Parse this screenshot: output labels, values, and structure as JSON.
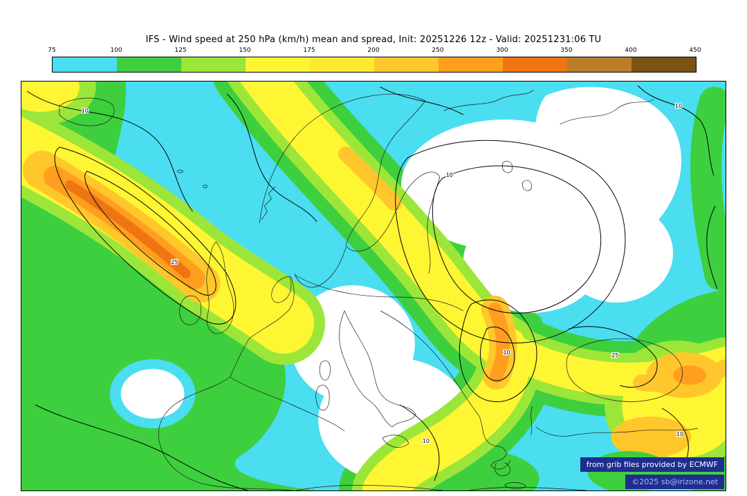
{
  "header": {
    "title": "IFS - Wind speed at 250 hPa (km/h) mean and spread, Init: 20251226 12z - Valid: 20251231:06 TU"
  },
  "colorbar": {
    "unit": "km/h",
    "ticks": [
      "75",
      "100",
      "125",
      "150",
      "175",
      "200",
      "250",
      "300",
      "350",
      "400",
      "450"
    ],
    "colors": [
      "#4adef0",
      "#3ecf3e",
      "#9ce63a",
      "#fff633",
      "#ffe92e",
      "#ffc72b",
      "#ff9e1f",
      "#ef7513",
      "#bc7d28",
      "#7d5314"
    ]
  },
  "map": {
    "contour_labels": [
      "10",
      "25",
      "10",
      "10",
      "10",
      "25",
      "10",
      "10"
    ],
    "fill_colors": {
      "cyan": "#4adef0",
      "green": "#3ecf3e",
      "yellow_green": "#9ce63a",
      "yellow": "#fff633",
      "gold": "#ffc72b",
      "orange": "#ff9e1f",
      "dark_orange": "#ef7513"
    }
  },
  "credits": {
    "line1": "from grib files provided by ECMWF",
    "line2": "©2025 sb@irizone.net"
  },
  "chart_data": {
    "type": "heatmap",
    "title": "IFS - Wind speed at 250 hPa (km/h) mean and spread",
    "init": "20251226 12z",
    "valid": "20251231:06 TU",
    "unit": "km/h",
    "scale_ticks": [
      75,
      100,
      125,
      150,
      175,
      200,
      250,
      300,
      350,
      400,
      450
    ],
    "scale_colors": [
      "#4adef0",
      "#3ecf3e",
      "#9ce63a",
      "#fff633",
      "#ffe92e",
      "#ffc72b",
      "#ff9e1f",
      "#ef7513",
      "#bc7d28",
      "#7d5314"
    ],
    "spread_contour_labels": [
      10,
      25
    ]
  }
}
